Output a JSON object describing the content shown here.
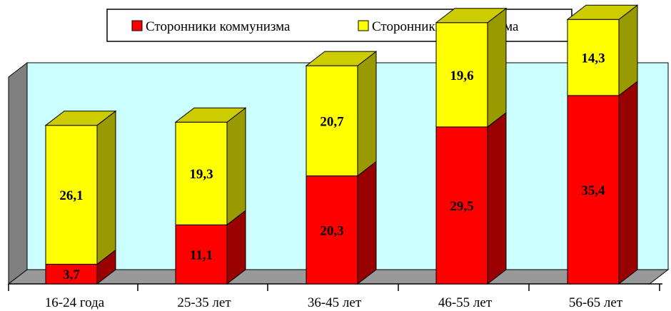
{
  "chart_data": {
    "type": "bar",
    "stacked": true,
    "three_d": true,
    "categories": [
      "16-24 года",
      "25-35 лет",
      "36-45 лет",
      "46-55 лет",
      "56-65 лет"
    ],
    "series": [
      {
        "name": "Сторонники коммунизма",
        "values": [
          3.7,
          11.1,
          20.3,
          29.5,
          35.4
        ],
        "labels": [
          "3,7",
          "11,1",
          "20,3",
          "29,5",
          "35,4"
        ],
        "color": "#ff0000",
        "side_color": "#990000",
        "top_color": "#cc0000"
      },
      {
        "name": "Сторонники капитализма",
        "values": [
          26.1,
          19.3,
          20.7,
          19.6,
          14.3
        ],
        "labels": [
          "26,1",
          "19,3",
          "20,7",
          "19,6",
          "14,3"
        ],
        "color": "#ffff00",
        "side_color": "#999900",
        "top_color": "#cccc00"
      }
    ],
    "ylim": [
      0,
      50
    ],
    "legend": "top-center",
    "grid": false,
    "wall_color": "#ccffff",
    "wall_side_color": "#808080",
    "floor_color": "#999999"
  }
}
